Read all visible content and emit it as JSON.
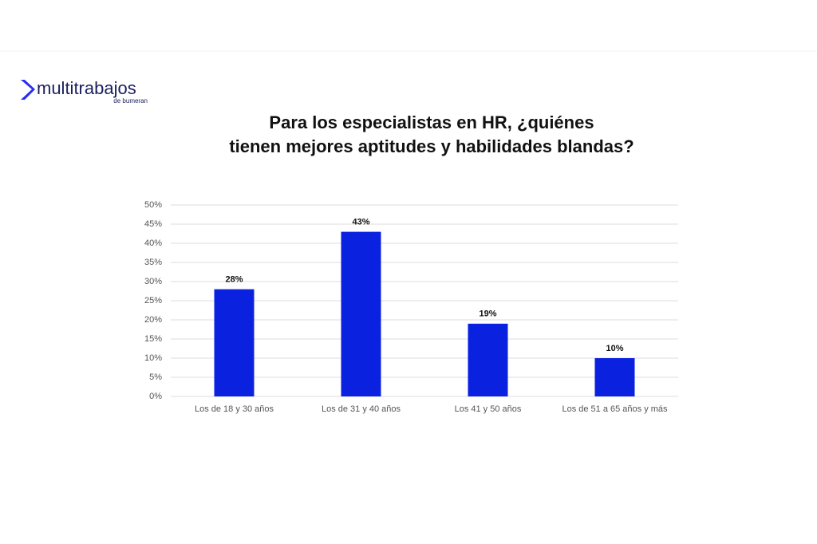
{
  "logo": {
    "name": "multitrabajos",
    "tagline": "de bumeran"
  },
  "chart_data": {
    "type": "bar",
    "title": [
      "Para los especialistas en HR, ¿quiénes",
      "tienen mejores aptitudes y habilidades blandas?"
    ],
    "categories": [
      "Los de 18 y 30 años",
      "Los de 31 y 40 años",
      "Los 41 y 50 años",
      "Los de 51 a 65 años y más"
    ],
    "values": [
      28,
      43,
      19,
      10
    ],
    "value_labels": [
      "28%",
      "43%",
      "19%",
      "10%"
    ],
    "color": "#0a22e0",
    "ylim": [
      0,
      50
    ],
    "yticks": [
      {
        "value": 0,
        "label": "0%"
      },
      {
        "value": 5,
        "label": "5%"
      },
      {
        "value": 10,
        "label": "10%"
      },
      {
        "value": 15,
        "label": "15%"
      },
      {
        "value": 20,
        "label": "20%"
      },
      {
        "value": 25,
        "label": "25%"
      },
      {
        "value": 30,
        "label": "30%"
      },
      {
        "value": 35,
        "label": "35%"
      },
      {
        "value": 40,
        "label": "40%"
      },
      {
        "value": 45,
        "label": "45%"
      },
      {
        "value": 50,
        "label": "50%"
      }
    ],
    "grid": true
  }
}
